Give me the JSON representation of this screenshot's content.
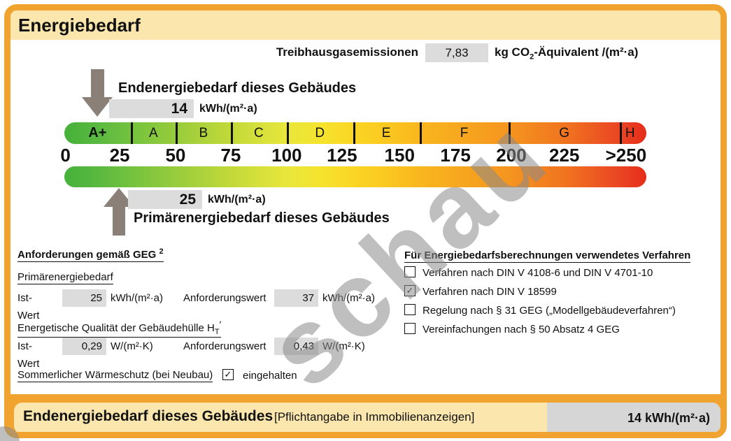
{
  "header": {
    "title": "Energiebedarf"
  },
  "emissions": {
    "label": "Treibhausgasemissionen",
    "value": "7,83",
    "unit_prefix": "kg CO",
    "unit_sub": "2",
    "unit_suffix": "-Äquivalent /(m²·a)"
  },
  "end_energy": {
    "label": "Endenergiebedarf dieses Gebäudes",
    "value": "14",
    "unit": "kWh/(m²·a)"
  },
  "primary_energy": {
    "label": "Primärenergiebedarf dieses Gebäudes",
    "value": "25",
    "unit": "kWh/(m²·a)"
  },
  "scale": {
    "classes": [
      "A+",
      "A",
      "B",
      "C",
      "D",
      "E",
      "F",
      "G",
      "H"
    ],
    "tick_labels": [
      "0",
      "25",
      "50",
      "75",
      "100",
      "125",
      "150",
      "175",
      "200",
      "225",
      ">250"
    ]
  },
  "requirements": {
    "title": "Anforderungen gemäß GEG",
    "title_sup": "2",
    "primary": {
      "subtitle": "Primärenergiebedarf",
      "ist_label": "Ist-Wert",
      "ist_value": "25",
      "ist_unit": "kWh/(m²·a)",
      "anf_label": "Anforderungswert",
      "anf_value": "37",
      "anf_unit": "kWh/(m²·a)"
    },
    "envelope": {
      "subtitle_prefix": "Energetische Qualität der Gebäudehülle H",
      "subtitle_sub": "T",
      "subtitle_suffix": "′",
      "ist_label": "Ist-Wert",
      "ist_value": "0,29",
      "ist_unit": "W/(m²·K)",
      "anf_label": "Anforderungswert",
      "anf_value": "0,43",
      "anf_unit": "W/(m²·K)"
    },
    "summer": {
      "label": "Sommerlicher Wärmeschutz (bei Neubau)",
      "checked": true,
      "mark": "✓",
      "status": "eingehalten"
    }
  },
  "methods": {
    "title": "Für Energiebedarfsberechnungen verwendetes Verfahren",
    "items": [
      {
        "label": "Verfahren nach DIN V 4108-6 und DIN V 4701-10",
        "checked": false,
        "mark": ""
      },
      {
        "label": "Verfahren nach DIN V 18599",
        "checked": true,
        "mark": "✓"
      },
      {
        "label": "Regelung nach § 31 GEG („Modellgebäudeverfahren“)",
        "checked": false,
        "mark": ""
      },
      {
        "label": "Vereinfachungen nach § 50 Absatz 4 GEG",
        "checked": false,
        "mark": ""
      }
    ]
  },
  "footer": {
    "label": "Endenergiebedarf dieses Gebäudes",
    "note": "[Pflichtangabe in Immobilienanzeigen]",
    "value": "14 kWh/(m²·a)"
  },
  "watermark": {
    "text": "schau"
  },
  "colors": {
    "frame": "#F0A42F",
    "panel": "#FBE7AE",
    "value_box": "#DCDCDC",
    "footer_box": "#D6D6D6",
    "arrow": "#8B8077",
    "scale_start": "#45B13A",
    "scale_end": "#E62D1B"
  }
}
